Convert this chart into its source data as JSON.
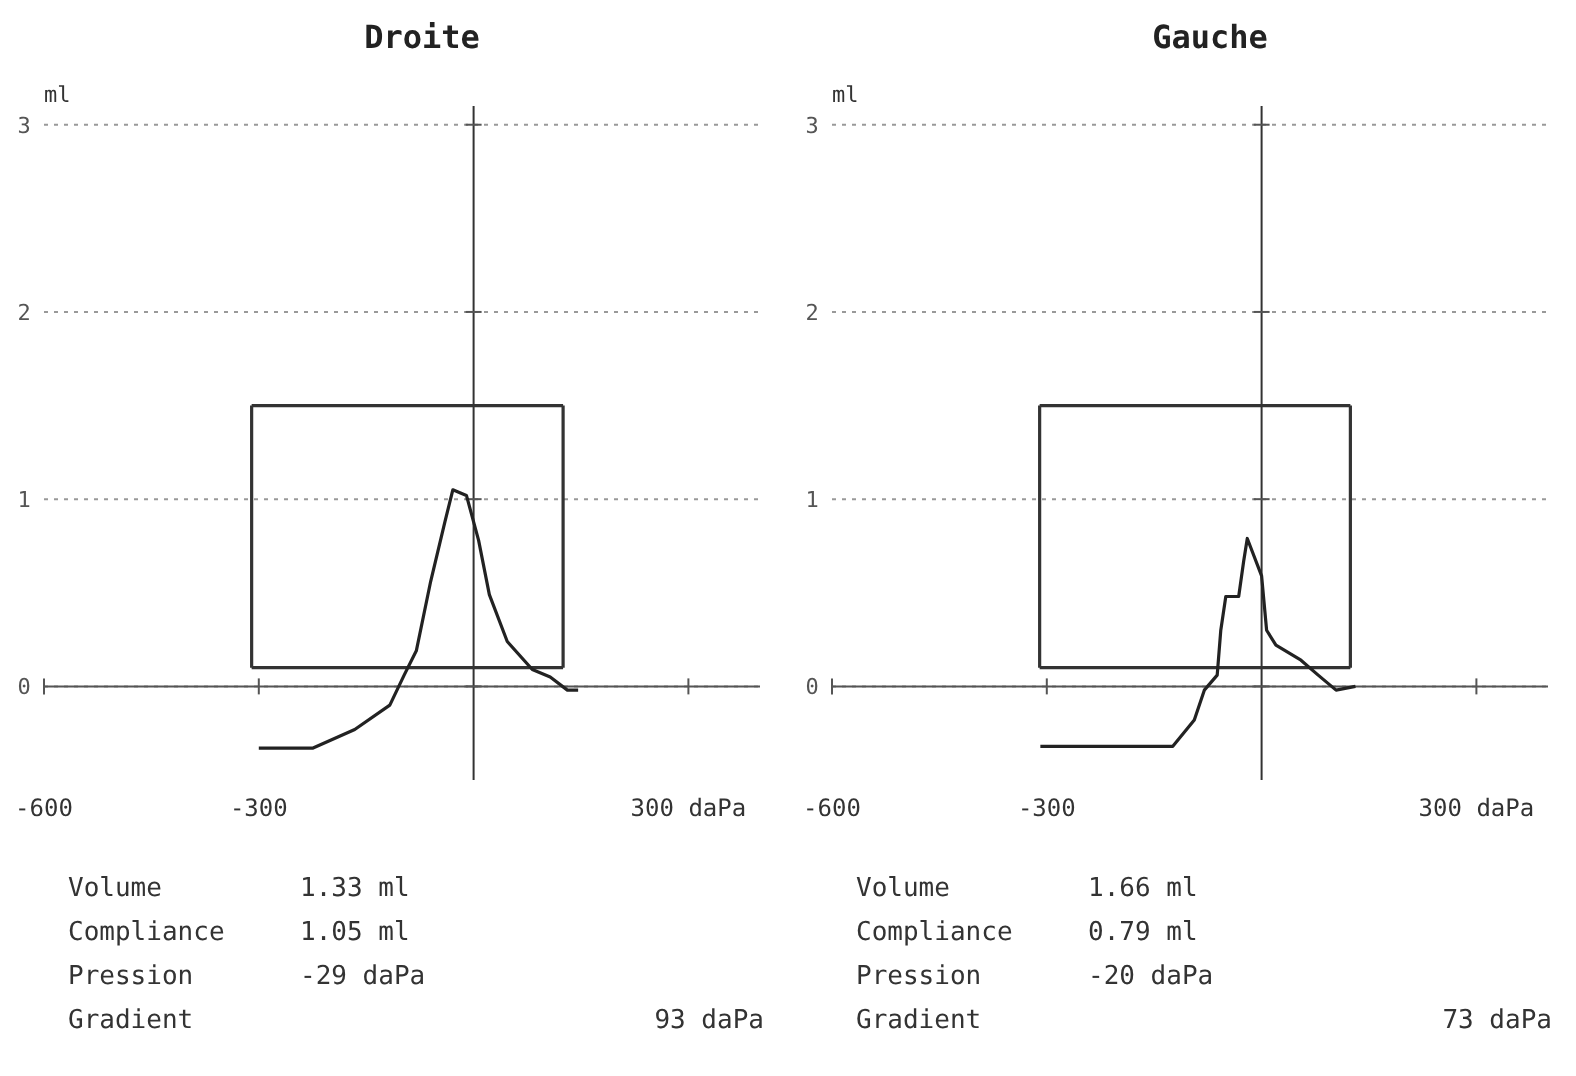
{
  "chart_data": [
    {
      "type": "line",
      "title": "Droite",
      "ylabel": "ml",
      "xlim": [
        -600,
        400
      ],
      "ylim": [
        -0.5,
        3.1
      ],
      "xticks": [
        {
          "value": -600,
          "label": "-600"
        },
        {
          "value": -300,
          "label": "-300"
        },
        {
          "value": 300,
          "label": "300 daPa"
        }
      ],
      "yticks": [
        0,
        1,
        2,
        3
      ],
      "grid": "y",
      "marker": "none",
      "series": [
        {
          "color": "#333333",
          "x": [
            -310,
            125
          ],
          "values": [
            1.5,
            1.5
          ]
        },
        {
          "color": "#333333",
          "x": [
            -310,
            125
          ],
          "values": [
            0.1,
            0.1
          ],
          "errors": [
            [
              0.1,
              1.5
            ],
            [
              0.1,
              1.5
            ]
          ]
        },
        {
          "color": "#222222",
          "x": [
            -300,
            -225,
            -166,
            -117,
            -97,
            -80,
            -60,
            -40,
            -29,
            -10,
            7,
            22,
            47,
            82,
            107,
            131,
            146
          ],
          "values": [
            -0.33,
            -0.33,
            -0.23,
            -0.1,
            0.06,
            0.19,
            0.56,
            0.88,
            1.05,
            1.02,
            0.78,
            0.49,
            0.24,
            0.09,
            0.05,
            -0.02,
            -0.02
          ]
        }
      ],
      "annotations": [
        "Volume",
        "1.33 ml",
        "Compliance",
        "1.05 ml",
        "Pression",
        "-29 daPa",
        "Gradient",
        "93 daPa"
      ]
    },
    {
      "type": "line",
      "title": "Gauche",
      "ylabel": "ml",
      "xlim": [
        -600,
        400
      ],
      "ylim": [
        -0.5,
        3.1
      ],
      "xticks": [
        {
          "value": -600,
          "label": "-600"
        },
        {
          "value": -300,
          "label": "-300"
        },
        {
          "value": 300,
          "label": "300 daPa"
        }
      ],
      "yticks": [
        0,
        1,
        2,
        3
      ],
      "grid": "y",
      "marker": "none",
      "series": [
        {
          "color": "#333333",
          "x": [
            -310,
            124
          ],
          "values": [
            1.5,
            1.5
          ]
        },
        {
          "color": "#333333",
          "x": [
            -310,
            124
          ],
          "values": [
            0.1,
            0.1
          ],
          "errors": [
            [
              0.1,
              1.5
            ],
            [
              0.1,
              1.5
            ]
          ]
        },
        {
          "color": "#222222",
          "x": [
            -309,
            -124,
            -94,
            -80,
            -62,
            -57,
            -50,
            -32,
            -25,
            -20,
            0,
            7,
            20,
            55,
            79,
            104,
            131
          ],
          "values": [
            -0.32,
            -0.32,
            -0.18,
            -0.02,
            0.06,
            0.3,
            0.48,
            0.48,
            0.67,
            0.79,
            0.59,
            0.3,
            0.22,
            0.14,
            0.06,
            -0.02,
            0
          ]
        }
      ],
      "annotations": [
        "Volume",
        "1.66 ml",
        "Compliance",
        "0.79 ml",
        "Pression",
        "-20 daPa",
        "Gradient",
        "73 daPa"
      ]
    }
  ]
}
